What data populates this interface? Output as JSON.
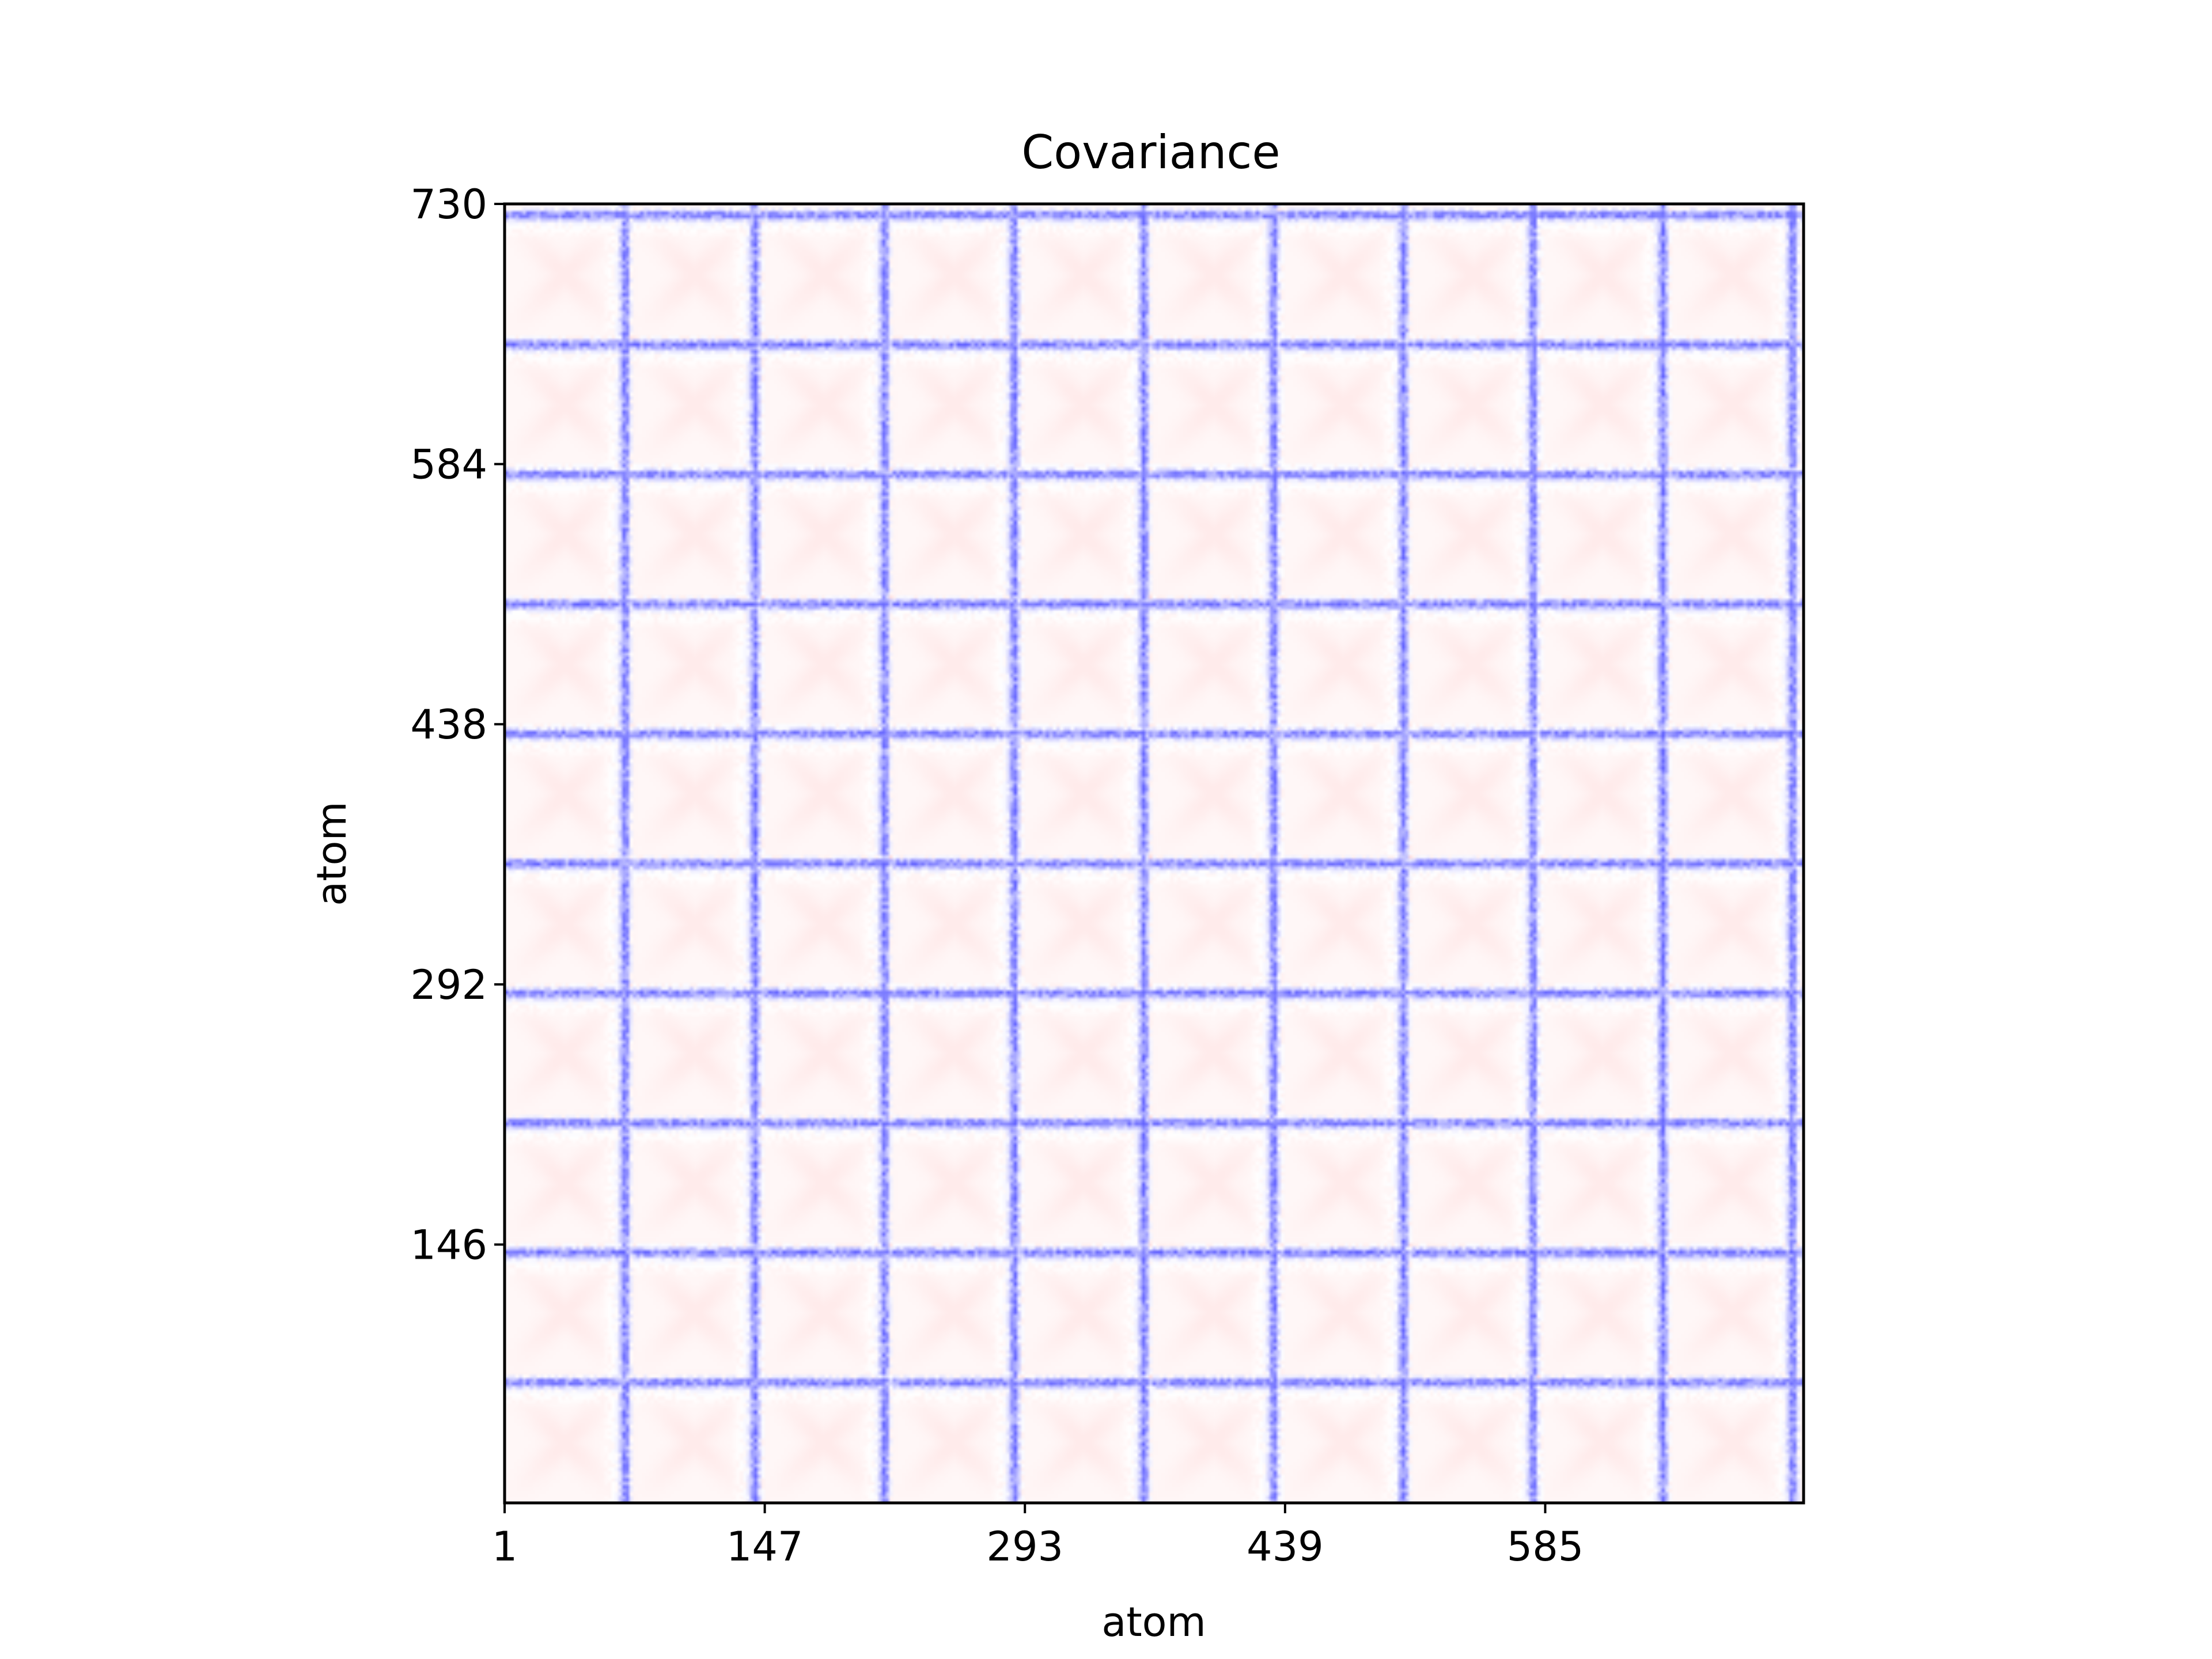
{
  "chart_data": {
    "type": "heatmap",
    "title": "Covariance",
    "xlabel": "atom",
    "ylabel": "atom",
    "xlim": [
      1,
      730
    ],
    "ylim": [
      1,
      730
    ],
    "x_ticks": [
      "1",
      "147",
      "293",
      "439",
      "585"
    ],
    "x_tick_values": [
      1,
      147,
      293,
      439,
      585
    ],
    "y_ticks": [
      "146",
      "292",
      "438",
      "584",
      "730"
    ],
    "y_tick_values": [
      146,
      292,
      438,
      584,
      730
    ],
    "colormap": "bwr",
    "colors": {
      "negative": "#0000ff",
      "zero": "#ffffff",
      "positive": "#ff0000"
    },
    "pattern": {
      "repeat_period_atoms": 73,
      "negative_band_centers_atoms": [
        68,
        141,
        214,
        287,
        360,
        433,
        506,
        579,
        652,
        725
      ],
      "positive_band_centers_atoms": [
        71,
        144,
        217,
        290,
        363,
        436,
        509,
        582,
        655,
        728
      ],
      "negative_band_peak": -0.6,
      "positive_band_peak": 0.35,
      "block_interior_value": 0.05
    },
    "grid": false,
    "legend": "none"
  }
}
